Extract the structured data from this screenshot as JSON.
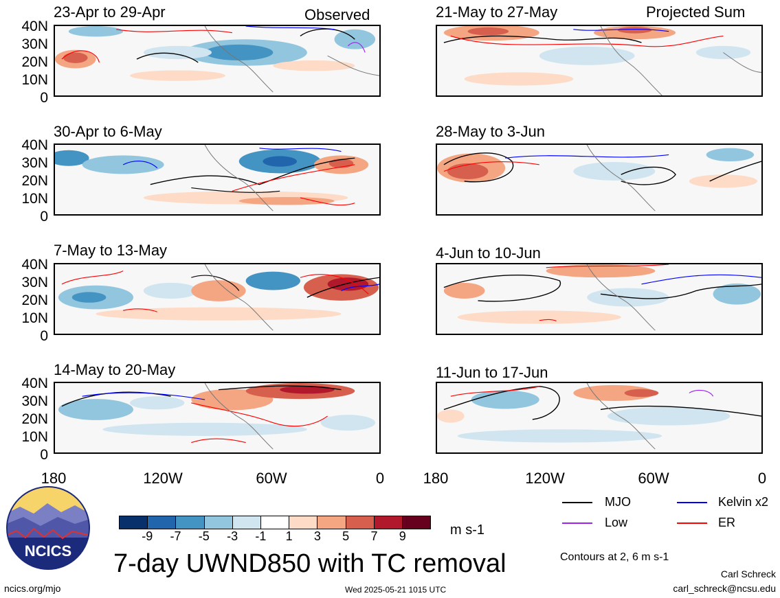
{
  "panels": [
    {
      "id": "p1",
      "title": "23-Apr to 29-Apr",
      "tag": "Observed"
    },
    {
      "id": "p2",
      "title": "21-May to 27-May",
      "tag": "Projected Sum"
    },
    {
      "id": "p3",
      "title": "30-Apr to 6-May",
      "tag": ""
    },
    {
      "id": "p4",
      "title": "28-May to 3-Jun",
      "tag": ""
    },
    {
      "id": "p5",
      "title": "7-May to 13-May",
      "tag": ""
    },
    {
      "id": "p6",
      "title": "4-Jun to 10-Jun",
      "tag": ""
    },
    {
      "id": "p7",
      "title": "14-May to 20-May",
      "tag": ""
    },
    {
      "id": "p8",
      "title": "11-Jun to 17-Jun",
      "tag": ""
    }
  ],
  "latitudes": [
    "40N",
    "30N",
    "20N",
    "10N",
    "0"
  ],
  "longitudes": [
    "180",
    "120W",
    "60W",
    "0"
  ],
  "colorbar": {
    "ticks": [
      "-9",
      "-7",
      "-5",
      "-3",
      "-1",
      "1",
      "3",
      "5",
      "7",
      "9"
    ],
    "colors": [
      "#08306b",
      "#2166ac",
      "#4393c3",
      "#92c5de",
      "#d1e5f0",
      "#ffffff",
      "#fddbc7",
      "#f4a582",
      "#d6604d",
      "#b2182b",
      "#67001f"
    ],
    "units": "m s-1"
  },
  "title": "7-day UWND850 with TC removal",
  "legend": [
    {
      "label": "MJO",
      "color": "#000000"
    },
    {
      "label": "Kelvin x2",
      "color": "#0000ff"
    },
    {
      "label": "Low",
      "color": "#a020f0"
    },
    {
      "label": "ER",
      "color": "#ff0000"
    }
  ],
  "contour_note": "Contours at 2, 6 m s-1",
  "author": "Carl Schreck",
  "email": "carl_schreck@ncsu.edu",
  "website": "ncics.org/mjo",
  "timestamp": "Wed 2025-05-21 1015 UTC",
  "logo_text": "NCICS"
}
